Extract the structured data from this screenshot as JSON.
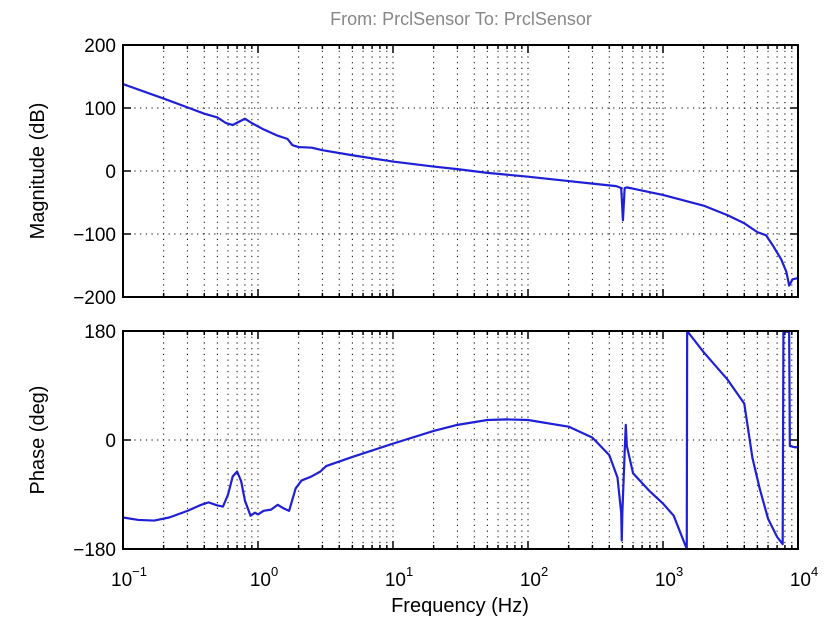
{
  "title": "From: PrclSensor  To: PrclSensor",
  "chart_data": {
    "type": "line",
    "title": "From: PrclSensor  To: PrclSensor",
    "xlabel": "Frequency  (Hz)",
    "xscale": "log",
    "xlim": [
      0.1,
      10000
    ],
    "xticks": [
      {
        "value": 0.1,
        "base": "10",
        "exp": "−1"
      },
      {
        "value": 1,
        "base": "10",
        "exp": "0"
      },
      {
        "value": 10,
        "base": "10",
        "exp": "1"
      },
      {
        "value": 100,
        "base": "10",
        "exp": "2"
      },
      {
        "value": 1000,
        "base": "10",
        "exp": "3"
      },
      {
        "value": 10000,
        "base": "10",
        "exp": "4"
      }
    ],
    "grid": true,
    "line_color": "#1f1fd6",
    "panels": [
      {
        "name": "magnitude",
        "ylabel": "Magnitude (dB)",
        "ylim": [
          -200,
          200
        ],
        "yticks": [
          {
            "value": 200,
            "label": "200"
          },
          {
            "value": 100,
            "label": "100"
          },
          {
            "value": 0,
            "label": "0"
          },
          {
            "value": -100,
            "label": "−100"
          },
          {
            "value": -200,
            "label": "−200"
          }
        ],
        "points": [
          [
            0.1,
            138
          ],
          [
            0.2,
            115
          ],
          [
            0.3,
            101
          ],
          [
            0.4,
            91
          ],
          [
            0.5,
            85
          ],
          [
            0.58,
            76
          ],
          [
            0.65,
            73
          ],
          [
            0.72,
            78
          ],
          [
            0.8,
            83
          ],
          [
            0.9,
            76
          ],
          [
            1.1,
            66
          ],
          [
            1.4,
            56
          ],
          [
            1.65,
            51
          ],
          [
            1.8,
            41
          ],
          [
            2.0,
            38
          ],
          [
            2.5,
            37
          ],
          [
            3.0,
            33
          ],
          [
            5,
            25
          ],
          [
            10,
            15
          ],
          [
            20,
            7
          ],
          [
            30,
            3
          ],
          [
            50,
            -3
          ],
          [
            100,
            -9
          ],
          [
            200,
            -16
          ],
          [
            300,
            -20
          ],
          [
            450,
            -24
          ],
          [
            490,
            -27
          ],
          [
            505,
            -78
          ],
          [
            520,
            -27
          ],
          [
            540,
            -26
          ],
          [
            700,
            -31
          ],
          [
            1000,
            -38
          ],
          [
            2000,
            -55
          ],
          [
            3000,
            -70
          ],
          [
            4000,
            -83
          ],
          [
            5000,
            -97
          ],
          [
            5800,
            -102
          ],
          [
            6500,
            -118
          ],
          [
            7500,
            -140
          ],
          [
            8200,
            -160
          ],
          [
            8600,
            -182
          ],
          [
            9100,
            -172
          ],
          [
            10000,
            -170
          ]
        ]
      },
      {
        "name": "phase",
        "ylabel": "Phase (deg)",
        "ylim": [
          -180,
          180
        ],
        "yticks": [
          {
            "value": 180,
            "label": "180"
          },
          {
            "value": 0,
            "label": "0"
          },
          {
            "value": -180,
            "label": "−180"
          }
        ],
        "points": [
          [
            0.1,
            -128
          ],
          [
            0.13,
            -132
          ],
          [
            0.17,
            -133
          ],
          [
            0.22,
            -128
          ],
          [
            0.3,
            -117
          ],
          [
            0.38,
            -107
          ],
          [
            0.43,
            -103
          ],
          [
            0.5,
            -108
          ],
          [
            0.55,
            -110
          ],
          [
            0.6,
            -90
          ],
          [
            0.65,
            -60
          ],
          [
            0.7,
            -52
          ],
          [
            0.75,
            -68
          ],
          [
            0.8,
            -100
          ],
          [
            0.88,
            -125
          ],
          [
            0.95,
            -120
          ],
          [
            1.0,
            -123
          ],
          [
            1.1,
            -117
          ],
          [
            1.25,
            -115
          ],
          [
            1.4,
            -107
          ],
          [
            1.55,
            -113
          ],
          [
            1.7,
            -117
          ],
          [
            1.8,
            -98
          ],
          [
            1.9,
            -80
          ],
          [
            2.1,
            -67
          ],
          [
            2.5,
            -60
          ],
          [
            2.9,
            -52
          ],
          [
            3.2,
            -43
          ],
          [
            5,
            -28
          ],
          [
            10,
            -6
          ],
          [
            20,
            15
          ],
          [
            30,
            25
          ],
          [
            50,
            33
          ],
          [
            70,
            34
          ],
          [
            100,
            33
          ],
          [
            200,
            22
          ],
          [
            300,
            4
          ],
          [
            400,
            -25
          ],
          [
            460,
            -62
          ],
          [
            490,
            -120
          ],
          [
            495,
            -166
          ],
          [
            500,
            -120
          ],
          [
            510,
            -70
          ],
          [
            520,
            -20
          ],
          [
            530,
            25
          ],
          [
            540,
            -10
          ],
          [
            600,
            -55
          ],
          [
            800,
            -85
          ],
          [
            1000,
            -105
          ],
          [
            1200,
            -125
          ],
          [
            1500,
            -180
          ],
          [
            1510,
            180
          ],
          [
            2000,
            145
          ],
          [
            3000,
            100
          ],
          [
            4000,
            60
          ],
          [
            4600,
            -30
          ],
          [
            5200,
            -80
          ],
          [
            6000,
            -130
          ],
          [
            7000,
            -160
          ],
          [
            7700,
            -172
          ],
          [
            7800,
            180
          ],
          [
            8600,
            178
          ],
          [
            8700,
            -10
          ],
          [
            9500,
            -12
          ],
          [
            10000,
            -12
          ]
        ]
      }
    ]
  }
}
